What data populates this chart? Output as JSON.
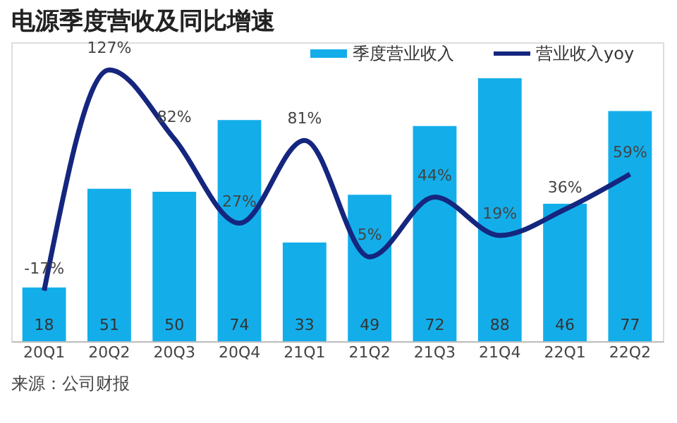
{
  "chart_data": {
    "type": "bar",
    "title": "电源季度营收及同比增速",
    "categories": [
      "20Q1",
      "20Q2",
      "20Q3",
      "20Q4",
      "21Q1",
      "21Q2",
      "21Q3",
      "21Q4",
      "22Q1",
      "22Q2"
    ],
    "series": [
      {
        "name": "季度营业收入",
        "color": "#13aeea",
        "values": [
          18,
          51,
          50,
          74,
          33,
          49,
          72,
          88,
          46,
          77
        ]
      },
      {
        "name": "营业收入yoy",
        "type": "line",
        "axis": "y2",
        "color": "#15267f",
        "values": [
          -17,
          127,
          82,
          27,
          81,
          5,
          44,
          19,
          36,
          59
        ],
        "value_labels": [
          "-17%",
          "127%",
          "82%",
          "27%",
          "81%",
          "5%",
          "44%",
          "19%",
          "36%",
          "59%"
        ]
      }
    ],
    "ylim": [
      0,
      100
    ],
    "y2lim": [
      -50,
      145
    ],
    "tick_labels": "x",
    "data_labels": true,
    "legend": "top right",
    "grid": false,
    "annotations": [
      "来源：公司财报"
    ]
  }
}
